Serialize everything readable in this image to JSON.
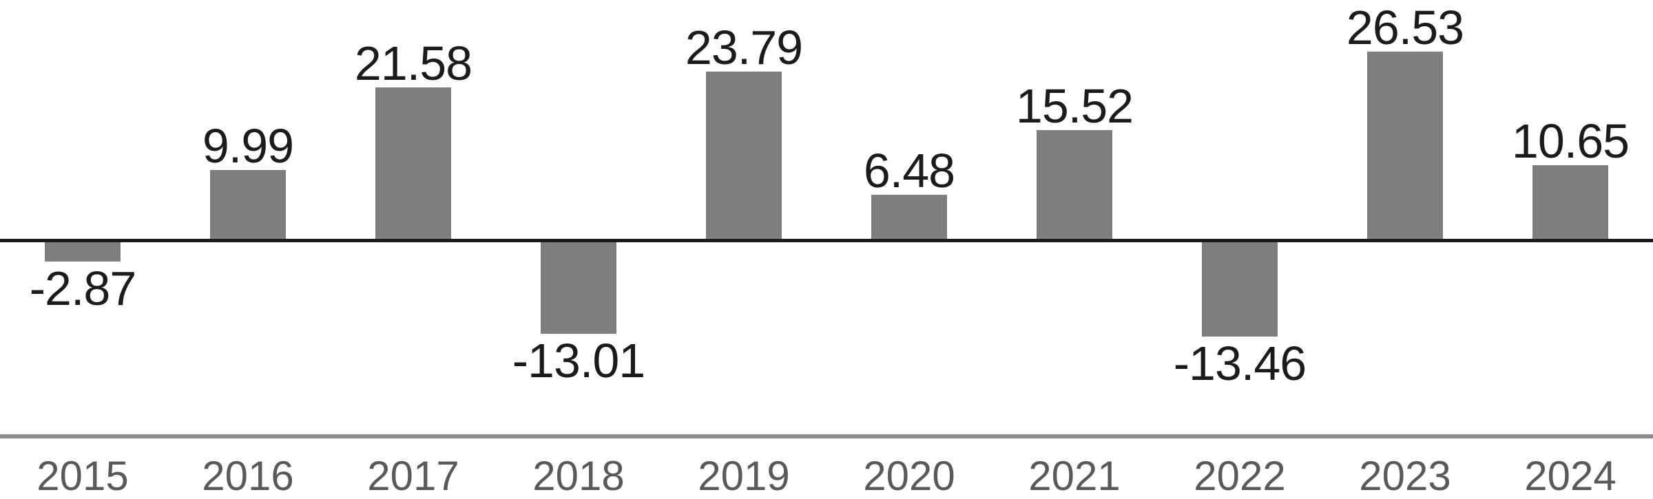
{
  "chart_data": {
    "type": "bar",
    "title": "",
    "xlabel": "",
    "ylabel": "",
    "categories": [
      "2015",
      "2016",
      "2017",
      "2018",
      "2019",
      "2020",
      "2021",
      "2022",
      "2023",
      "2024"
    ],
    "values": [
      -2.87,
      9.99,
      21.58,
      -13.01,
      23.79,
      6.48,
      15.52,
      -13.46,
      26.53,
      10.65
    ],
    "value_labels": [
      "-2.87",
      "9.99",
      "21.58",
      "-13.01",
      "23.79",
      "6.48",
      "15.52",
      "-13.46",
      "26.53",
      "10.65"
    ],
    "ylim": [
      -18,
      30
    ],
    "grid": false,
    "legend": false,
    "data_labels": true,
    "colors": {
      "bar": "#7f7f7f",
      "value_label": "#1c1a1b",
      "year_label": "#595959",
      "zero_line": "#1c1c1c",
      "x_axis_line": "#8a8a8a",
      "background": "#ffffff"
    }
  }
}
